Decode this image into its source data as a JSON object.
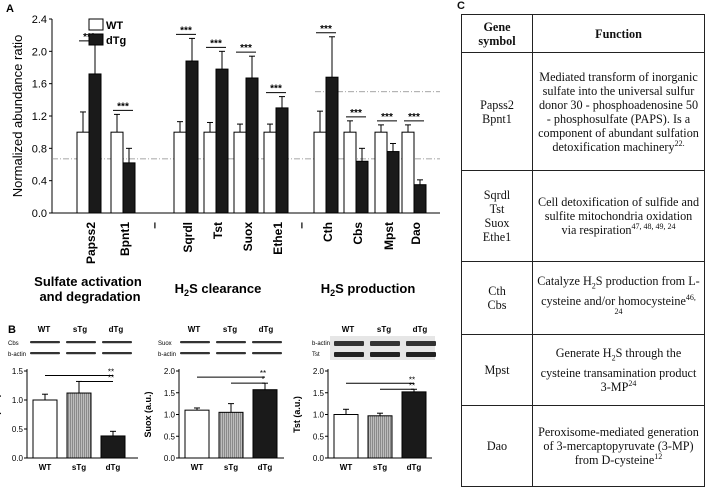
{
  "panels": {
    "a": {
      "label": "A",
      "ylabel": "Normalized abundance ratio",
      "yticks": [
        "0.0",
        "0.4",
        "0.8",
        "1.2",
        "1.6",
        "2.0",
        "2.4"
      ],
      "legend": [
        "WT",
        "dTg"
      ],
      "groups": [
        "Sulfate activation\nand degradation",
        "H2S clearance",
        "H2S production"
      ],
      "significance": "***"
    },
    "b": {
      "label": "B"
    },
    "c": {
      "label": "C"
    }
  },
  "colors": {
    "wt": "#ffffff",
    "dtg": "#1a1a1a",
    "stg": "#a9a9a9",
    "threshold": "#888888"
  },
  "chart_data": [
    {
      "type": "bar",
      "ylabel": "Normalized abundance ratio",
      "ylim": [
        0,
        2.4
      ],
      "legend_position": "top-left",
      "categories": [
        "Papss2",
        "Bpnt1",
        "–",
        "Sqrdl",
        "Tst",
        "Suox",
        "Ethe1",
        "–",
        "Cth",
        "Cbs",
        "Mpst",
        "Dao"
      ],
      "series": [
        {
          "name": "WT",
          "values": [
            1.0,
            1.0,
            null,
            1.0,
            1.0,
            1.0,
            1.0,
            null,
            1.0,
            1.0,
            1.0,
            1.0
          ],
          "errors": [
            0.25,
            0.22,
            null,
            0.13,
            0.12,
            0.1,
            0.1,
            null,
            0.26,
            0.14,
            0.09,
            0.09
          ]
        },
        {
          "name": "dTg",
          "values": [
            1.72,
            0.62,
            null,
            1.88,
            1.78,
            1.67,
            1.3,
            null,
            1.68,
            0.64,
            0.76,
            0.35
          ],
          "errors": [
            0.36,
            0.18,
            null,
            0.28,
            0.22,
            0.27,
            0.14,
            null,
            0.5,
            0.16,
            0.1,
            0.06
          ]
        }
      ],
      "threshold_lines": [
        0.67,
        1.5
      ],
      "group_labels": [
        "Sulfate activation and degradation",
        "H2S clearance",
        "H2S production"
      ]
    },
    {
      "type": "bar",
      "ylabel": "Cbs (a.u.)",
      "ylim": [
        0,
        1.5
      ],
      "categories": [
        "WT",
        "sTg",
        "dTg"
      ],
      "values": [
        1.0,
        1.12,
        0.38
      ],
      "errors": [
        0.1,
        0.2,
        0.08
      ],
      "yticks": [
        "0.0",
        "0.5",
        "1.0",
        "1.5"
      ],
      "blot_labels": [
        "Cbs",
        "b-actin"
      ],
      "significance": [
        "**",
        "**"
      ]
    },
    {
      "type": "bar",
      "ylabel": "Suox (a.u.)",
      "ylim": [
        0,
        2.0
      ],
      "categories": [
        "WT",
        "sTg",
        "dTg"
      ],
      "values": [
        1.1,
        1.05,
        1.57
      ],
      "errors": [
        0.05,
        0.2,
        0.15
      ],
      "yticks": [
        "0.0",
        "0.5",
        "1.0",
        "1.5",
        "2.0"
      ],
      "blot_labels": [
        "Suox",
        "b-actin"
      ],
      "significance": [
        "**",
        "*"
      ]
    },
    {
      "type": "bar",
      "ylabel": "Tst (a.u.)",
      "ylim": [
        0,
        2.0
      ],
      "categories": [
        "WT",
        "sTg",
        "dTg"
      ],
      "values": [
        1.0,
        0.97,
        1.52
      ],
      "errors": [
        0.12,
        0.06,
        0.06
      ],
      "yticks": [
        "0.0",
        "0.5",
        "1.0",
        "1.5",
        "2.0"
      ],
      "blot_labels": [
        "b-actin",
        "Tst"
      ],
      "significance": [
        "**",
        "**"
      ]
    }
  ],
  "table": {
    "headers": [
      "Gene symbol",
      "Function"
    ],
    "rows": [
      {
        "symbols": "Papss2 Bpnt1",
        "function": "Mediated transform of inorganic sulfate into the universal sulfur donor 30 - phosphoadenosine 50 - phosphosulfate (PAPS). Is a component of abundant sulfation detoxification machinery",
        "ref": "22."
      },
      {
        "symbols": "Sqrdl Tst Suox Ethe1",
        "function": "Cell detoxification of sulfide and sulfite mitochondria oxidation via respiration",
        "ref": "47, 48, 49, 24"
      },
      {
        "symbols": "Cth Cbs",
        "function": "Catalyze H2S production from L-cysteine and/or homocysteine",
        "ref": "46, 24"
      },
      {
        "symbols": "Mpst",
        "function": "Generate H2S through the cysteine transamination product 3-MP",
        "ref": "24"
      },
      {
        "symbols": "Dao",
        "function": "Peroxisome-mediated generation of 3-mercaptopyruvate (3-MP) from D-cysteine",
        "ref": "12"
      }
    ]
  }
}
